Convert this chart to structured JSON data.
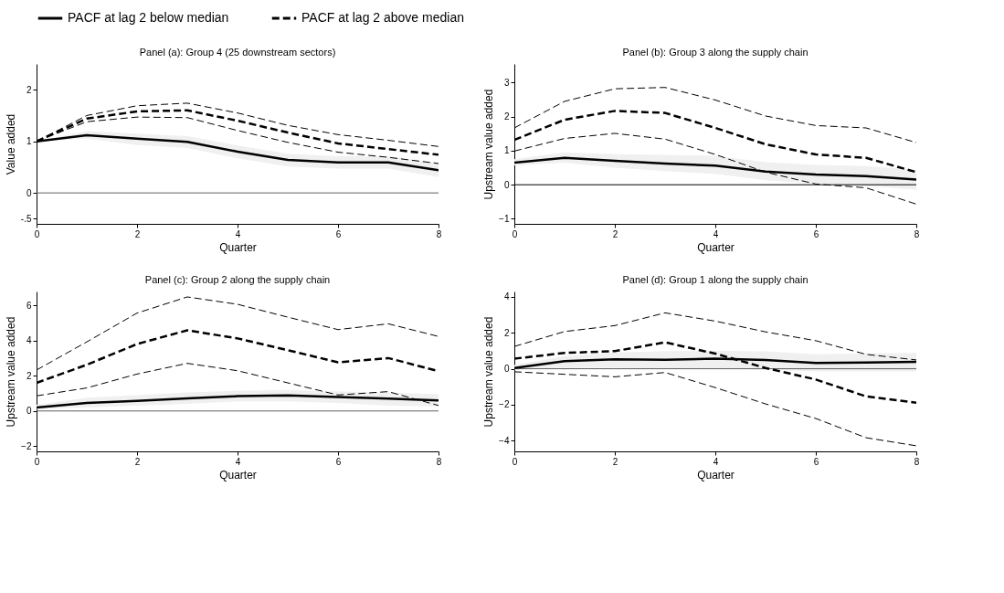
{
  "chart_data": [
    {
      "type": "line",
      "title": "Panel (a): Group 4 (25 downstream sectors)",
      "xlabel": "Quarter",
      "ylabel": "Value added",
      "x": [
        0,
        1,
        2,
        3,
        4,
        5,
        6,
        7,
        8
      ],
      "xlim": [
        0,
        8
      ],
      "xticks": [
        0,
        2,
        4,
        6,
        8
      ],
      "ylim": [
        -0.6,
        2.5
      ],
      "yticks": [
        {
          "value": -0.5,
          "label": "-.5"
        },
        0,
        1,
        2
      ],
      "grid": false,
      "marker": "none",
      "legend": "top",
      "ref_lines": [
        {
          "axis": "y",
          "value": 0,
          "color": "#606060"
        }
      ],
      "series": [
        {
          "name": "PACF at lag 2 below median",
          "color": "#000000",
          "line_style": "solid",
          "values": [
            1.0,
            1.12,
            1.05,
            0.99,
            0.8,
            0.64,
            0.59,
            0.59,
            0.44
          ],
          "lower": [
            1.0,
            1.05,
            0.93,
            0.87,
            0.67,
            0.51,
            0.47,
            0.47,
            0.31
          ],
          "upper": [
            1.0,
            1.2,
            1.15,
            1.1,
            0.92,
            0.76,
            0.71,
            0.71,
            0.58
          ]
        },
        {
          "name": "PACF at lag 2 above median",
          "color": "#000000",
          "line_style": "dashed",
          "values": [
            1.0,
            1.44,
            1.58,
            1.6,
            1.4,
            1.17,
            0.96,
            0.85,
            0.74
          ]
        },
        {
          "color": "#000000",
          "line_style": "dashed",
          "values": [
            1.0,
            1.38,
            1.47,
            1.46,
            1.21,
            0.98,
            0.79,
            0.69,
            0.57
          ]
        },
        {
          "color": "#000000",
          "line_style": "dashed",
          "values": [
            1.0,
            1.5,
            1.69,
            1.74,
            1.55,
            1.31,
            1.13,
            1.02,
            0.9
          ]
        }
      ]
    },
    {
      "type": "line",
      "title": "Panel (b): Group 3 along the supply chain",
      "xlabel": "Quarter",
      "ylabel": "Upstream value added",
      "x": [
        0,
        1,
        2,
        3,
        4,
        5,
        6,
        7,
        8
      ],
      "xlim": [
        0,
        8
      ],
      "xticks": [
        0,
        2,
        4,
        6,
        8
      ],
      "ylim": [
        -1.15,
        3.55
      ],
      "yticks": [
        -1,
        0,
        1,
        2,
        3
      ],
      "grid": false,
      "marker": "none",
      "ref_lines": [
        {
          "axis": "y",
          "value": 0,
          "color": "#000000"
        }
      ],
      "series": [
        {
          "color": "#000000",
          "line_style": "solid",
          "values": [
            0.65,
            0.79,
            0.7,
            0.62,
            0.56,
            0.39,
            0.3,
            0.25,
            0.15
          ],
          "lower": [
            0.57,
            0.65,
            0.5,
            0.4,
            0.32,
            0.13,
            0.03,
            -0.03,
            -0.15
          ],
          "upper": [
            0.75,
            0.95,
            0.9,
            0.88,
            0.85,
            0.66,
            0.58,
            0.55,
            0.45
          ]
        },
        {
          "color": "#000000",
          "line_style": "dashed",
          "values": [
            1.32,
            1.91,
            2.17,
            2.11,
            1.67,
            1.19,
            0.89,
            0.79,
            0.37
          ]
        },
        {
          "color": "#000000",
          "line_style": "dashed",
          "values": [
            0.99,
            1.36,
            1.51,
            1.34,
            0.89,
            0.37,
            0.02,
            -0.09,
            -0.57
          ]
        },
        {
          "color": "#000000",
          "line_style": "dashed",
          "values": [
            1.67,
            2.45,
            2.82,
            2.86,
            2.49,
            2.02,
            1.74,
            1.67,
            1.24
          ]
        }
      ]
    },
    {
      "type": "line",
      "title": "Panel (c): Group 2 along the supply chain",
      "xlabel": "Quarter",
      "ylabel": "Upstream value added",
      "x": [
        0,
        1,
        2,
        3,
        4,
        5,
        6,
        7,
        8
      ],
      "xlim": [
        0,
        8
      ],
      "xticks": [
        0,
        2,
        4,
        6,
        8
      ],
      "ylim": [
        -2.3,
        6.8
      ],
      "yticks": [
        -2,
        0,
        2,
        4,
        6
      ],
      "grid": false,
      "marker": "none",
      "ref_lines": [
        {
          "axis": "y",
          "value": 0,
          "color": "#606060"
        }
      ],
      "series": [
        {
          "color": "#000000",
          "line_style": "solid",
          "values": [
            0.2,
            0.46,
            0.57,
            0.71,
            0.84,
            0.89,
            0.79,
            0.7,
            0.6
          ],
          "lower": [
            0.1,
            0.2,
            0.3,
            0.4,
            0.55,
            0.55,
            0.45,
            0.3,
            0.25
          ],
          "upper": [
            0.35,
            0.75,
            0.9,
            1.05,
            1.15,
            1.2,
            1.1,
            1.05,
            0.95
          ]
        },
        {
          "color": "#000000",
          "line_style": "dashed",
          "values": [
            1.6,
            2.63,
            3.81,
            4.59,
            4.13,
            3.46,
            2.77,
            3.01,
            2.27
          ]
        },
        {
          "color": "#000000",
          "line_style": "dashed",
          "values": [
            0.86,
            1.31,
            2.1,
            2.71,
            2.29,
            1.6,
            0.91,
            1.1,
            0.31
          ]
        },
        {
          "color": "#000000",
          "line_style": "dashed",
          "values": [
            2.33,
            3.93,
            5.57,
            6.49,
            6.07,
            5.34,
            4.63,
            4.96,
            4.24
          ]
        }
      ]
    },
    {
      "type": "line",
      "title": "Panel (d): Group 1 along the supply chain",
      "xlabel": "Quarter",
      "ylabel": "Upstream value added",
      "x": [
        0,
        1,
        2,
        3,
        4,
        5,
        6,
        7,
        8
      ],
      "xlim": [
        0,
        8
      ],
      "xticks": [
        0,
        2,
        4,
        6,
        8
      ],
      "ylim": [
        -4.6,
        4.3
      ],
      "yticks": [
        -4,
        -2,
        0,
        2,
        4
      ],
      "grid": false,
      "marker": "none",
      "ref_lines": [
        {
          "axis": "y",
          "value": 0,
          "color": "#606060"
        }
      ],
      "series": [
        {
          "color": "#000000",
          "line_style": "solid",
          "values": [
            0.04,
            0.42,
            0.52,
            0.5,
            0.56,
            0.49,
            0.32,
            0.35,
            0.38
          ],
          "lower": [
            -0.05,
            0.05,
            0.05,
            0.0,
            0.0,
            -0.05,
            -0.15,
            -0.15,
            -0.15
          ],
          "upper": [
            0.2,
            0.7,
            0.9,
            0.98,
            1.0,
            0.97,
            0.8,
            0.85,
            0.88
          ]
        },
        {
          "color": "#000000",
          "line_style": "dashed",
          "values": [
            0.56,
            0.88,
            0.98,
            1.47,
            0.84,
            0.04,
            -0.6,
            -1.54,
            -1.89
          ]
        },
        {
          "color": "#000000",
          "line_style": "dashed",
          "values": [
            -0.17,
            -0.31,
            -0.45,
            -0.21,
            -1.05,
            -1.96,
            -2.77,
            -3.84,
            -4.29
          ]
        },
        {
          "color": "#000000",
          "line_style": "dashed",
          "values": [
            1.24,
            2.07,
            2.4,
            3.11,
            2.65,
            2.05,
            1.56,
            0.8,
            0.49
          ]
        }
      ]
    }
  ]
}
